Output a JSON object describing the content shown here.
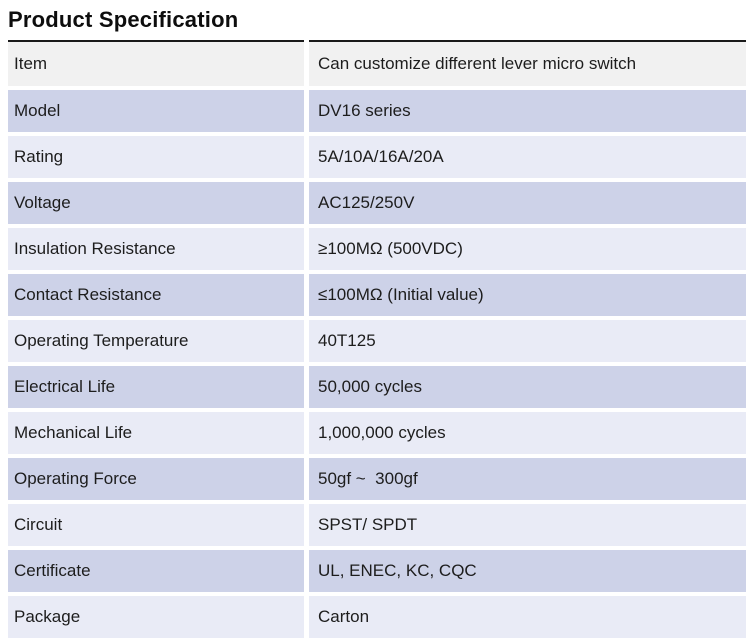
{
  "page": {
    "title": "Product Specification"
  },
  "theme": {
    "page_bg": "#ffffff",
    "title_color": "#0d0d0d",
    "text_color": "#1d1d1d",
    "header_row_bg": "#f1f1f1",
    "row_bg_dark": "#cdd2e8",
    "row_bg_light": "#e9ebf6",
    "table_top_border": "#1a1a1a"
  },
  "table": {
    "rows": [
      {
        "label": "Item",
        "value": "Can customize different lever micro switch"
      },
      {
        "label": "Model",
        "value": "DV16 series"
      },
      {
        "label": "Rating",
        "value": "5A/10A/16A/20A"
      },
      {
        "label": "Voltage",
        "value": "AC125/250V"
      },
      {
        "label": "Insulation Resistance",
        "value": "≥100MΩ (500VDC)"
      },
      {
        "label": "Contact Resistance",
        "value": "≤100MΩ (Initial value)"
      },
      {
        "label": "Operating Temperature",
        "value": "40T125"
      },
      {
        "label": "Electrical Life",
        "value": "50,000 cycles"
      },
      {
        "label": "Mechanical Life",
        "value": "1,000,000 cycles"
      },
      {
        "label": "Operating Force",
        "value": "50gf ~  300gf"
      },
      {
        "label": "Circuit",
        "value": "SPST/ SPDT"
      },
      {
        "label": "Certificate",
        "value": "UL, ENEC, KC, CQC"
      },
      {
        "label": "Package",
        "value": "Carton"
      }
    ]
  }
}
